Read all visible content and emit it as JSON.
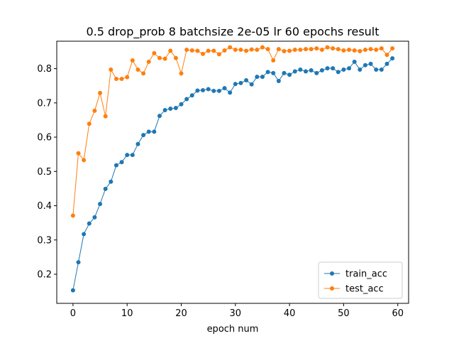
{
  "chart_data": {
    "type": "line",
    "title": "0.5 drop_prob 8 batchsize  2e-05 lr 60 epochs result",
    "xlabel": "epoch num",
    "ylabel": "",
    "xlim": [
      -3,
      62
    ],
    "ylim": [
      0.115,
      0.88
    ],
    "xticks": [
      0,
      10,
      20,
      30,
      40,
      50,
      60
    ],
    "xtick_labels": [
      "0",
      "10",
      "20",
      "30",
      "40",
      "50",
      "60"
    ],
    "yticks": [
      0.2,
      0.3,
      0.4,
      0.5,
      0.6,
      0.7,
      0.8
    ],
    "ytick_labels": [
      "0.2",
      "0.3",
      "0.4",
      "0.5",
      "0.6",
      "0.7",
      "0.8"
    ],
    "grid": false,
    "legend_position": "lower-right",
    "x": [
      0,
      1,
      2,
      3,
      4,
      5,
      6,
      7,
      8,
      9,
      10,
      11,
      12,
      13,
      14,
      15,
      16,
      17,
      18,
      19,
      20,
      21,
      22,
      23,
      24,
      25,
      26,
      27,
      28,
      29,
      30,
      31,
      32,
      33,
      34,
      35,
      36,
      37,
      38,
      39,
      40,
      41,
      42,
      43,
      44,
      45,
      46,
      47,
      48,
      49,
      50,
      51,
      52,
      53,
      54,
      55,
      56,
      57,
      58,
      59
    ],
    "series": [
      {
        "name": "train_acc",
        "color": "#1f77b4",
        "values": [
          0.153,
          0.235,
          0.317,
          0.348,
          0.366,
          0.405,
          0.449,
          0.47,
          0.518,
          0.527,
          0.548,
          0.548,
          0.58,
          0.606,
          0.616,
          0.616,
          0.662,
          0.679,
          0.683,
          0.685,
          0.696,
          0.711,
          0.722,
          0.736,
          0.737,
          0.74,
          0.735,
          0.735,
          0.743,
          0.73,
          0.755,
          0.758,
          0.766,
          0.754,
          0.776,
          0.776,
          0.79,
          0.787,
          0.764,
          0.787,
          0.782,
          0.792,
          0.797,
          0.792,
          0.795,
          0.787,
          0.795,
          0.801,
          0.801,
          0.79,
          0.797,
          0.801,
          0.82,
          0.797,
          0.81,
          0.814,
          0.797,
          0.797,
          0.814,
          0.83
        ]
      },
      {
        "name": "test_acc",
        "color": "#ff7f0e",
        "values": [
          0.371,
          0.553,
          0.533,
          0.639,
          0.677,
          0.729,
          0.661,
          0.797,
          0.77,
          0.77,
          0.775,
          0.824,
          0.797,
          0.786,
          0.82,
          0.845,
          0.831,
          0.829,
          0.852,
          0.831,
          0.786,
          0.855,
          0.853,
          0.852,
          0.843,
          0.852,
          0.852,
          0.842,
          0.853,
          0.862,
          0.855,
          0.855,
          0.852,
          0.856,
          0.855,
          0.862,
          0.857,
          0.824,
          0.857,
          0.851,
          0.852,
          0.855,
          0.855,
          0.857,
          0.857,
          0.859,
          0.855,
          0.862,
          0.859,
          0.857,
          0.853,
          0.855,
          0.853,
          0.851,
          0.855,
          0.857,
          0.855,
          0.859,
          0.84,
          0.859
        ]
      }
    ]
  }
}
